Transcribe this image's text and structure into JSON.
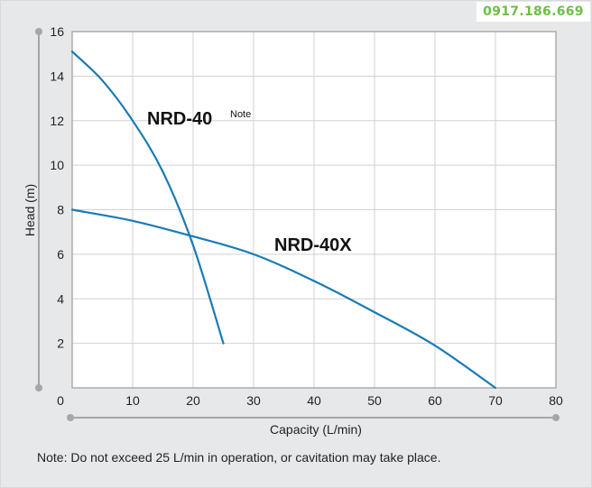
{
  "watermark": {
    "phone": "0917.186.669"
  },
  "footnote": "Note: Do not exceed 25 L/min in operation, or cavitation may take place.",
  "colors": {
    "background": "#e7e8ea",
    "plot_area": "#ffffff",
    "grid": "#cfd1d4",
    "curve": "#1a7bb5",
    "axis_line": "#a4a6a9",
    "watermark": "#6cbf45"
  },
  "chart_data": {
    "type": "line",
    "title": "",
    "xlabel": "Capacity (L/min)",
    "ylabel": "Head (m)",
    "xlim": [
      0,
      80
    ],
    "ylim": [
      0,
      16
    ],
    "xticks": [
      0,
      10,
      20,
      30,
      40,
      50,
      60,
      70,
      80
    ],
    "yticks": [
      2,
      4,
      6,
      8,
      10,
      12,
      14,
      16
    ],
    "y_zero_label": "0",
    "grid": true,
    "series": [
      {
        "name": "NRD-40",
        "name_superscript": "Note",
        "x": [
          0,
          5,
          10,
          15,
          20,
          25
        ],
        "y": [
          15.1,
          13.8,
          12.0,
          9.7,
          6.4,
          2.0
        ]
      },
      {
        "name": "NRD-40X",
        "x": [
          0,
          10,
          20,
          30,
          40,
          50,
          60,
          70
        ],
        "y": [
          8.0,
          7.5,
          6.8,
          6.0,
          4.8,
          3.4,
          1.9,
          0.0
        ]
      }
    ]
  }
}
